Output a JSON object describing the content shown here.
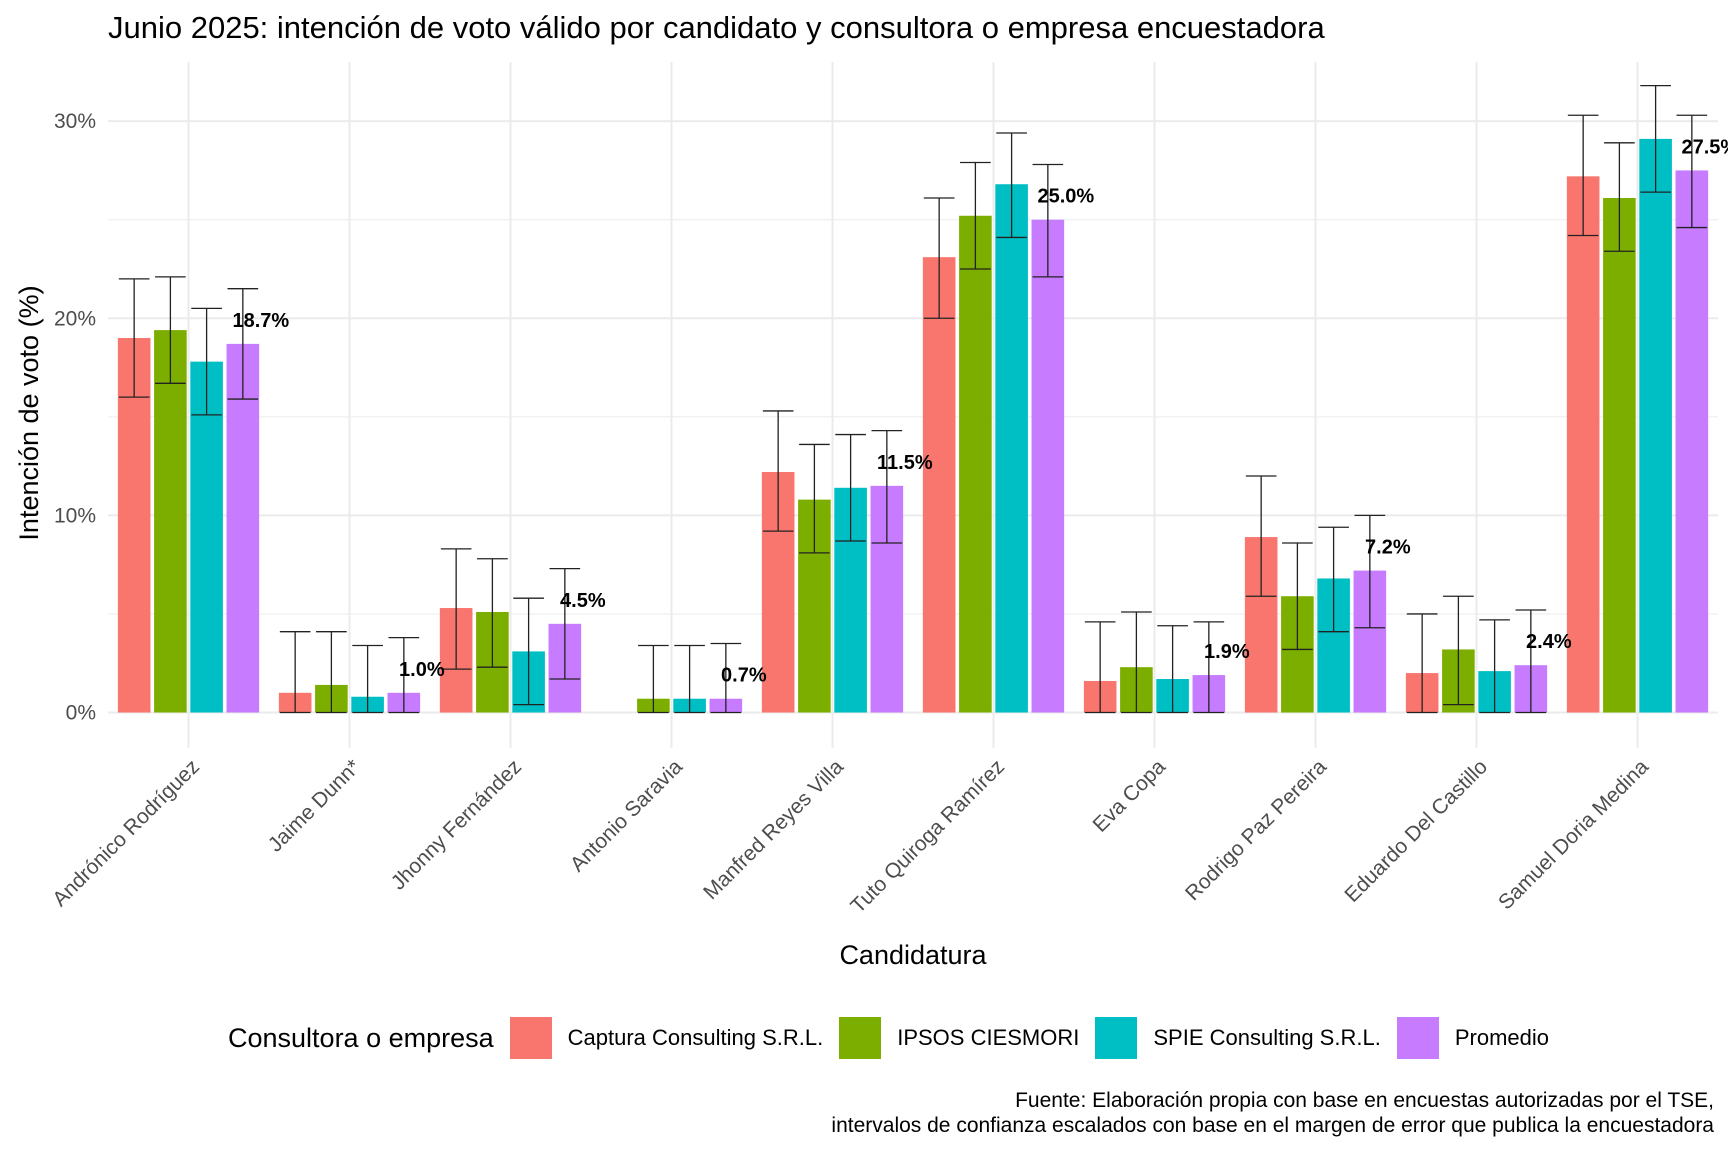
{
  "chart_data": {
    "type": "bar",
    "title": "Junio 2025: intención de voto válido por candidato y consultora o empresa encuestadora",
    "xlabel": "Candidatura",
    "ylabel": "Intención de voto (%)",
    "ylim": [
      -1.8,
      33
    ],
    "yticks": [
      0,
      10,
      20,
      30
    ],
    "ytick_labels": [
      "0%",
      "10%",
      "20%",
      "30%"
    ],
    "grid": true,
    "legend_position": "bottom",
    "legend_title": "Consultora o empresa",
    "categories": [
      "Andrónico Rodríguez",
      "Jaime Dunn*",
      "Jhonny Fernández",
      "Antonio Saravia",
      "Manfred Reyes Villa",
      "Tuto Quiroga Ramírez",
      "Eva Copa",
      "Rodrigo Paz Pereira",
      "Eduardo Del Castillo",
      "Samuel Doria Medina"
    ],
    "series": [
      {
        "name": "Captura Consulting S.R.L.",
        "color": "#F8766D",
        "values": [
          19.0,
          1.0,
          5.3,
          null,
          12.2,
          23.1,
          1.6,
          8.9,
          2.0,
          27.2
        ],
        "lower": [
          16.0,
          0.0,
          2.2,
          null,
          9.2,
          20.0,
          0.0,
          5.9,
          0.0,
          24.2
        ],
        "upper": [
          22.0,
          4.1,
          8.3,
          null,
          15.3,
          26.1,
          4.6,
          12.0,
          5.0,
          30.3
        ]
      },
      {
        "name": "IPSOS CIESMORI",
        "color": "#7CAE00",
        "values": [
          19.4,
          1.4,
          5.1,
          0.7,
          10.8,
          25.2,
          2.3,
          5.9,
          3.2,
          26.1
        ],
        "lower": [
          16.7,
          0.0,
          2.3,
          0.0,
          8.1,
          22.5,
          0.0,
          3.2,
          0.4,
          23.4
        ],
        "upper": [
          22.1,
          4.1,
          7.8,
          3.4,
          13.6,
          27.9,
          5.1,
          8.6,
          5.9,
          28.9
        ]
      },
      {
        "name": "SPIE Consulting S.R.L.",
        "color": "#00BFC4",
        "values": [
          17.8,
          0.8,
          3.1,
          0.7,
          11.4,
          26.8,
          1.7,
          6.8,
          2.1,
          29.1
        ],
        "lower": [
          15.1,
          0.0,
          0.4,
          0.0,
          8.7,
          24.1,
          0.0,
          4.1,
          0.0,
          26.4
        ],
        "upper": [
          20.5,
          3.4,
          5.8,
          3.4,
          14.1,
          29.4,
          4.4,
          9.4,
          4.7,
          31.8
        ]
      },
      {
        "name": "Promedio",
        "color": "#C77CFF",
        "values": [
          18.7,
          1.0,
          4.5,
          0.7,
          11.5,
          25.0,
          1.9,
          7.2,
          2.4,
          27.5
        ],
        "lower": [
          15.9,
          0.0,
          1.7,
          0.0,
          8.6,
          22.1,
          0.0,
          4.3,
          0.0,
          24.6
        ],
        "upper": [
          21.5,
          3.8,
          7.3,
          3.5,
          14.3,
          27.8,
          4.6,
          10.0,
          5.2,
          30.3
        ],
        "labels": [
          "18.7%",
          "1.0%",
          "4.5%",
          "0.7%",
          "11.5%",
          "25.0%",
          "1.9%",
          "7.2%",
          "2.4%",
          "27.5%"
        ]
      }
    ]
  },
  "caption": {
    "line1": "Fuente: Elaboración propia con base en encuestas autorizadas por el TSE,",
    "line2": "intervalos de confianza escalados con base en el margen de error que publica la encuestadora"
  }
}
